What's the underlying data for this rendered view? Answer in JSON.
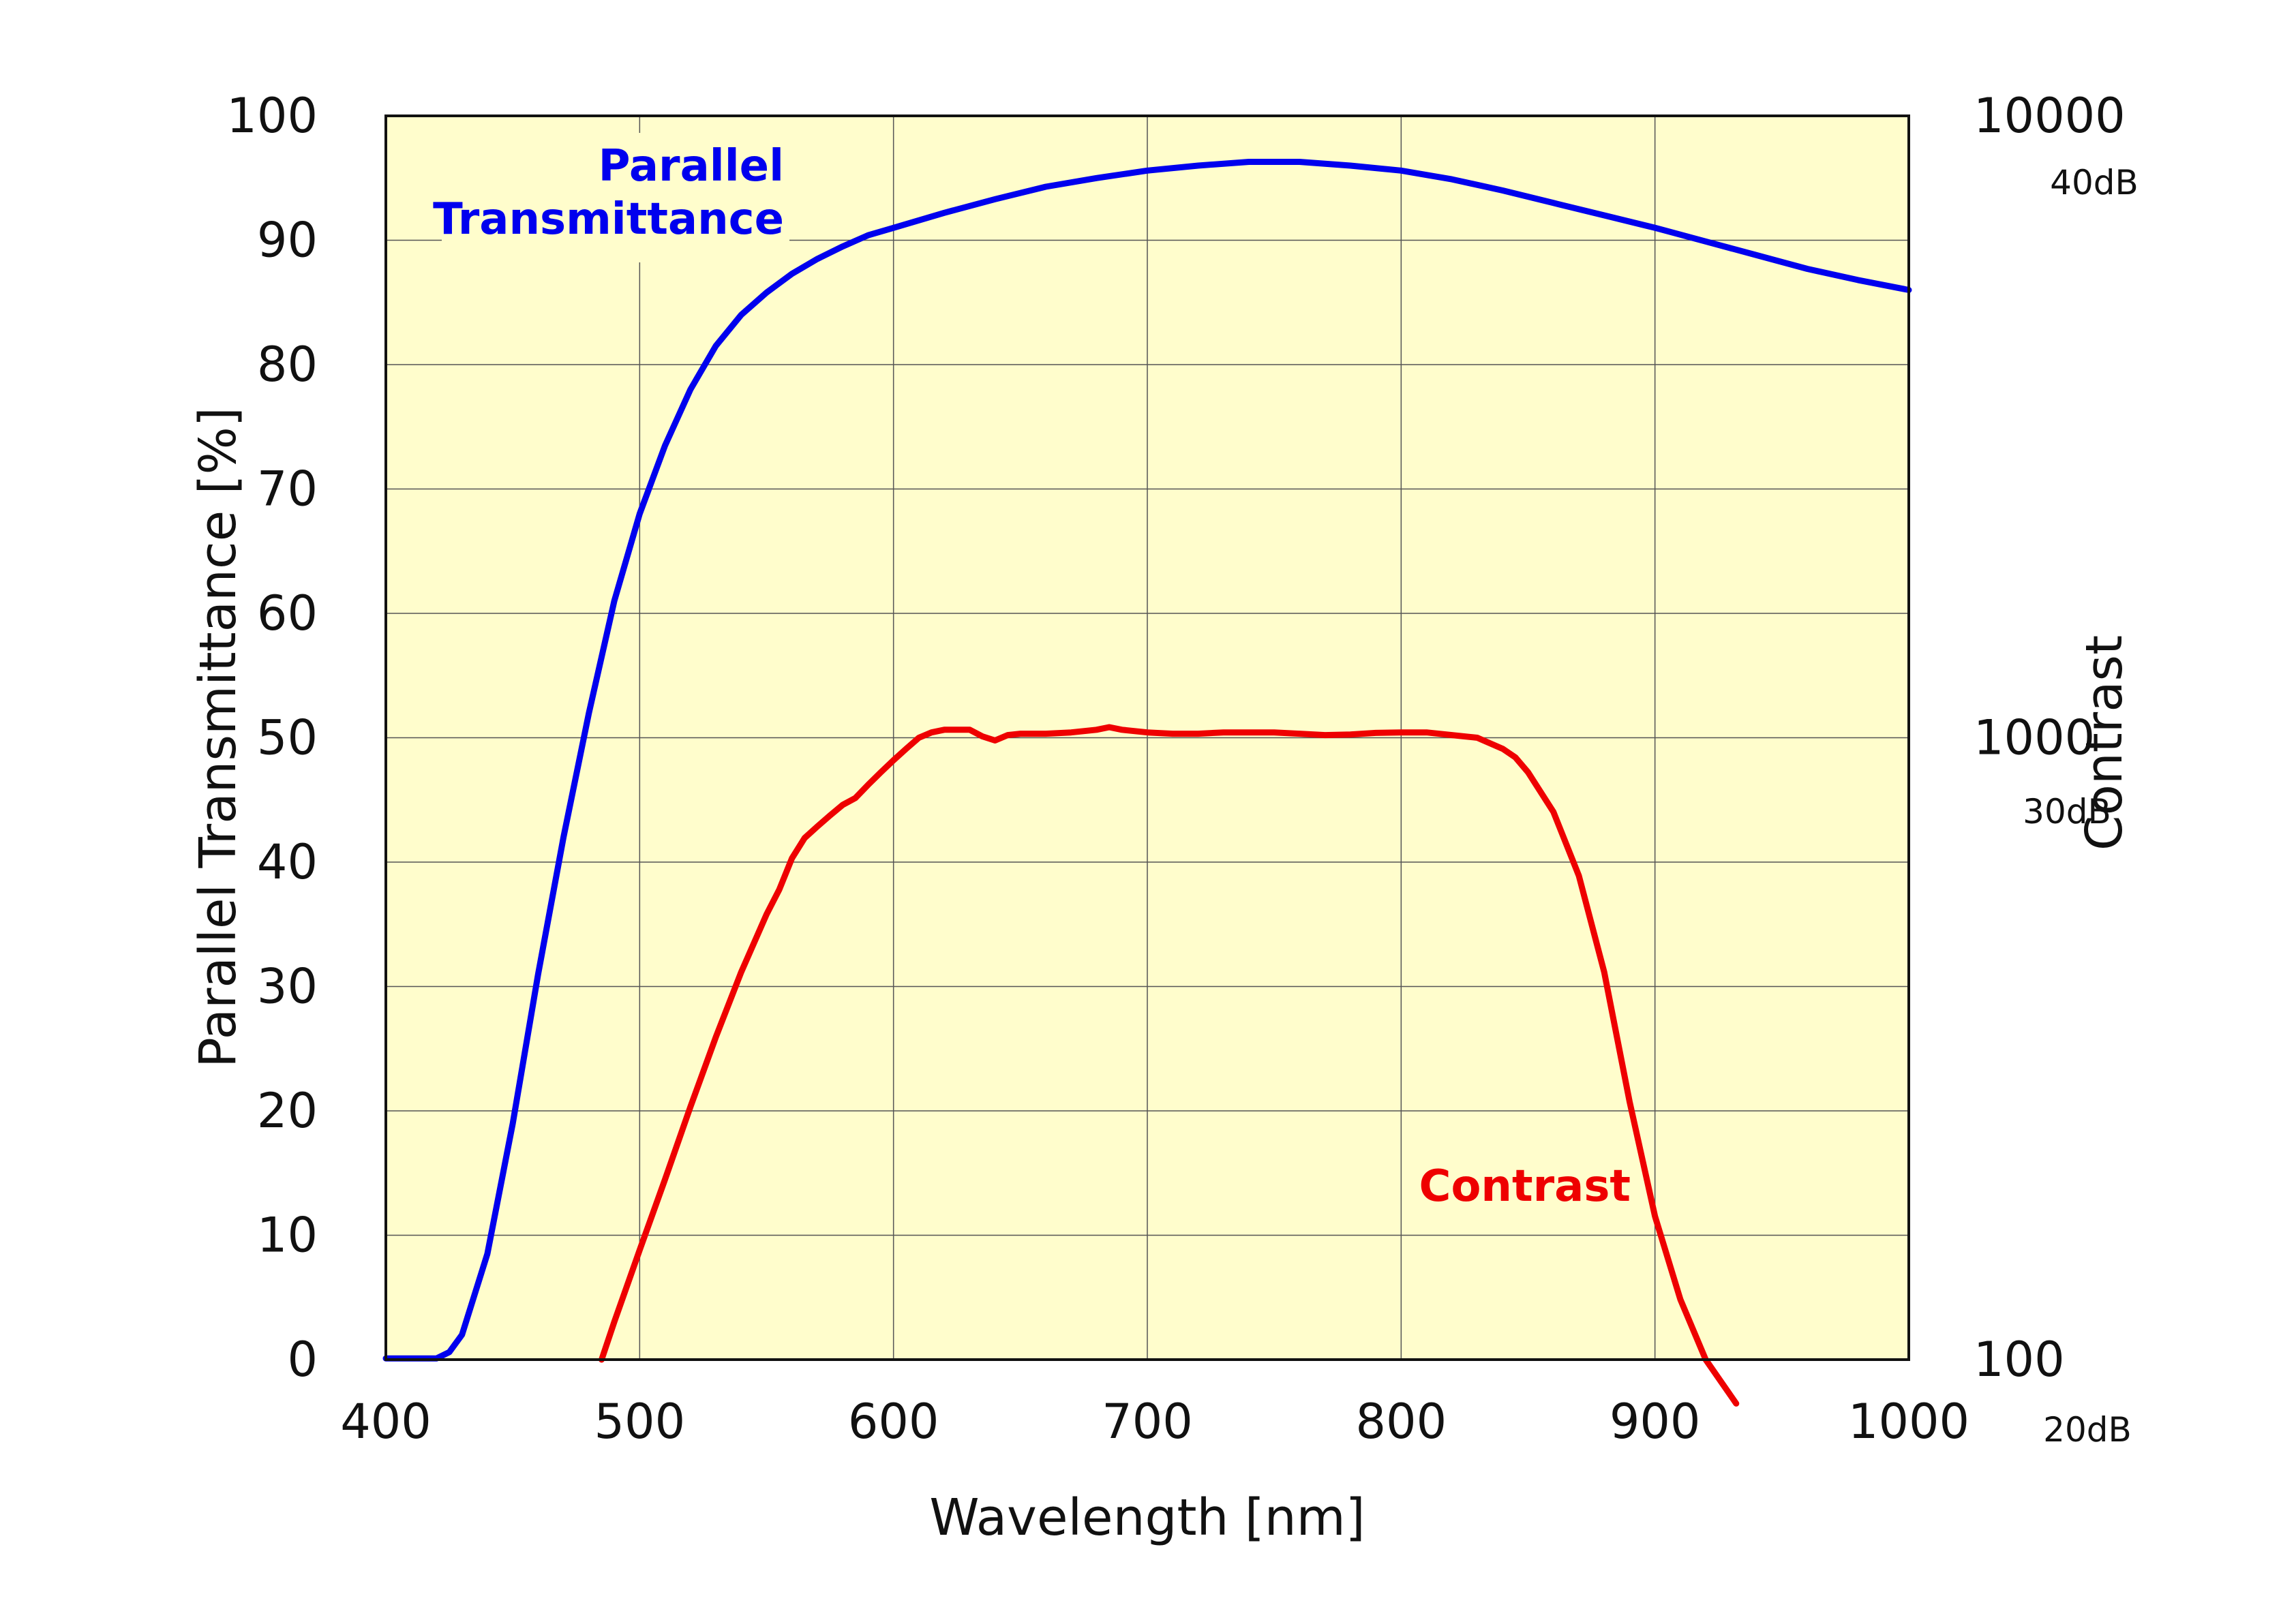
{
  "chart_data": {
    "type": "line",
    "title": "",
    "xlabel": "Wavelength [nm]",
    "ylabel": "Parallel Transmittance [%]",
    "y2label": "Contrast",
    "xlim": [
      400,
      1000
    ],
    "ylim": [
      0,
      100
    ],
    "y2lim": [
      100,
      10000
    ],
    "y2_scale": "log",
    "grid": true,
    "plot_background": "#FFFDCC",
    "x_ticks": [
      400,
      500,
      600,
      700,
      800,
      900,
      1000
    ],
    "y_ticks": [
      0,
      10,
      20,
      30,
      40,
      50,
      60,
      70,
      80,
      90,
      100
    ],
    "y2_ticks": [
      {
        "value": 100,
        "label": "100",
        "db": "20dB"
      },
      {
        "value": 1000,
        "label": "1000",
        "db": "30dB"
      },
      {
        "value": 10000,
        "label": "10000",
        "db": "40dB"
      }
    ],
    "series": [
      {
        "name": "Parallel Transmittance",
        "label_lines": [
          "Parallel",
          "Transmittance"
        ],
        "axis": "left",
        "color": "#0000EE",
        "x": [
          400,
          410,
          420,
          425,
          430,
          440,
          450,
          460,
          470,
          480,
          490,
          500,
          510,
          520,
          530,
          540,
          550,
          560,
          570,
          580,
          590,
          600,
          620,
          640,
          660,
          680,
          700,
          720,
          740,
          750,
          760,
          780,
          800,
          820,
          840,
          860,
          880,
          900,
          920,
          940,
          960,
          980,
          1000
        ],
        "y": [
          0.1,
          0.1,
          0.1,
          0.6,
          2.0,
          8.5,
          19.0,
          31.0,
          42.0,
          52.0,
          61.0,
          68.0,
          73.5,
          78.0,
          81.5,
          84.0,
          85.8,
          87.3,
          88.5,
          89.5,
          90.4,
          91.0,
          92.2,
          93.3,
          94.3,
          95.0,
          95.6,
          96.0,
          96.3,
          96.3,
          96.3,
          96.0,
          95.6,
          94.9,
          94.0,
          93.0,
          92.0,
          91.0,
          89.9,
          88.8,
          87.7,
          86.8,
          86.0
        ]
      },
      {
        "name": "Contrast",
        "label_lines": [
          "Contrast"
        ],
        "axis": "right",
        "color": "#EE0000",
        "x": [
          485,
          490,
          500,
          510,
          520,
          530,
          540,
          550,
          555,
          560,
          565,
          570,
          575,
          580,
          585,
          590,
          595,
          600,
          605,
          610,
          615,
          620,
          625,
          630,
          635,
          640,
          645,
          650,
          660,
          670,
          680,
          685,
          690,
          700,
          710,
          720,
          730,
          740,
          750,
          760,
          770,
          780,
          790,
          800,
          810,
          820,
          830,
          840,
          845,
          850,
          860,
          870,
          880,
          890,
          900,
          910,
          920,
          932
        ],
        "y": [
          100,
          115,
          150,
          195,
          255,
          330,
          420,
          520,
          570,
          640,
          690,
          720,
          750,
          780,
          800,
          840,
          880,
          920,
          960,
          1000,
          1020,
          1030,
          1030,
          1030,
          1005,
          990,
          1010,
          1015,
          1015,
          1020,
          1030,
          1040,
          1030,
          1020,
          1015,
          1015,
          1020,
          1020,
          1020,
          1015,
          1010,
          1012,
          1018,
          1020,
          1020,
          1010,
          1000,
          960,
          930,
          880,
          760,
          600,
          420,
          260,
          170,
          125,
          100,
          85
        ]
      }
    ]
  }
}
